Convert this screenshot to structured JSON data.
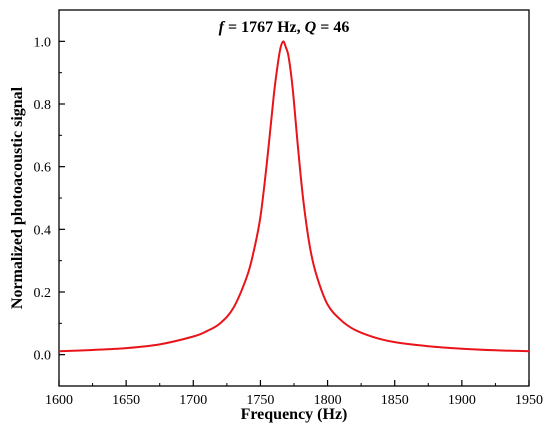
{
  "chart_data": {
    "type": "line",
    "title": "",
    "annotation": {
      "f_symbol": "f",
      "f_value": " = 1767 Hz, ",
      "q_symbol": "Q",
      "q_value": " = 46"
    },
    "xlabel": "Frequency (Hz)",
    "ylabel": "Normalized photoacoustic signal",
    "xlim": [
      1600,
      1950
    ],
    "ylim": [
      -0.1,
      1.1
    ],
    "x_ticks": [
      1600,
      1650,
      1700,
      1750,
      1800,
      1850,
      1900,
      1950
    ],
    "x_tick_labels": [
      "1600",
      "1650",
      "1700",
      "1750",
      "1800",
      "1850",
      "1900",
      "1950"
    ],
    "y_ticks": [
      0.0,
      0.2,
      0.4,
      0.6,
      0.8,
      1.0
    ],
    "y_tick_labels": [
      "0.0",
      "0.2",
      "0.4",
      "0.6",
      "0.8",
      "1.0"
    ],
    "grid": false,
    "line_color": "#e8141a",
    "series": [
      {
        "x": [
          1600,
          1625,
          1650,
          1675,
          1700,
          1710,
          1720,
          1730,
          1740,
          1745,
          1750,
          1755,
          1760,
          1763,
          1765,
          1767,
          1769,
          1771,
          1774,
          1778,
          1782,
          1787,
          1792,
          1800,
          1810,
          1820,
          1835,
          1850,
          1875,
          1900,
          1925,
          1950
        ],
        "y": [
          0.011,
          0.015,
          0.021,
          0.033,
          0.058,
          0.075,
          0.1,
          0.15,
          0.25,
          0.33,
          0.44,
          0.62,
          0.83,
          0.93,
          0.98,
          1.0,
          0.98,
          0.95,
          0.85,
          0.66,
          0.49,
          0.34,
          0.25,
          0.16,
          0.11,
          0.08,
          0.055,
          0.04,
          0.027,
          0.019,
          0.014,
          0.011
        ]
      }
    ]
  }
}
